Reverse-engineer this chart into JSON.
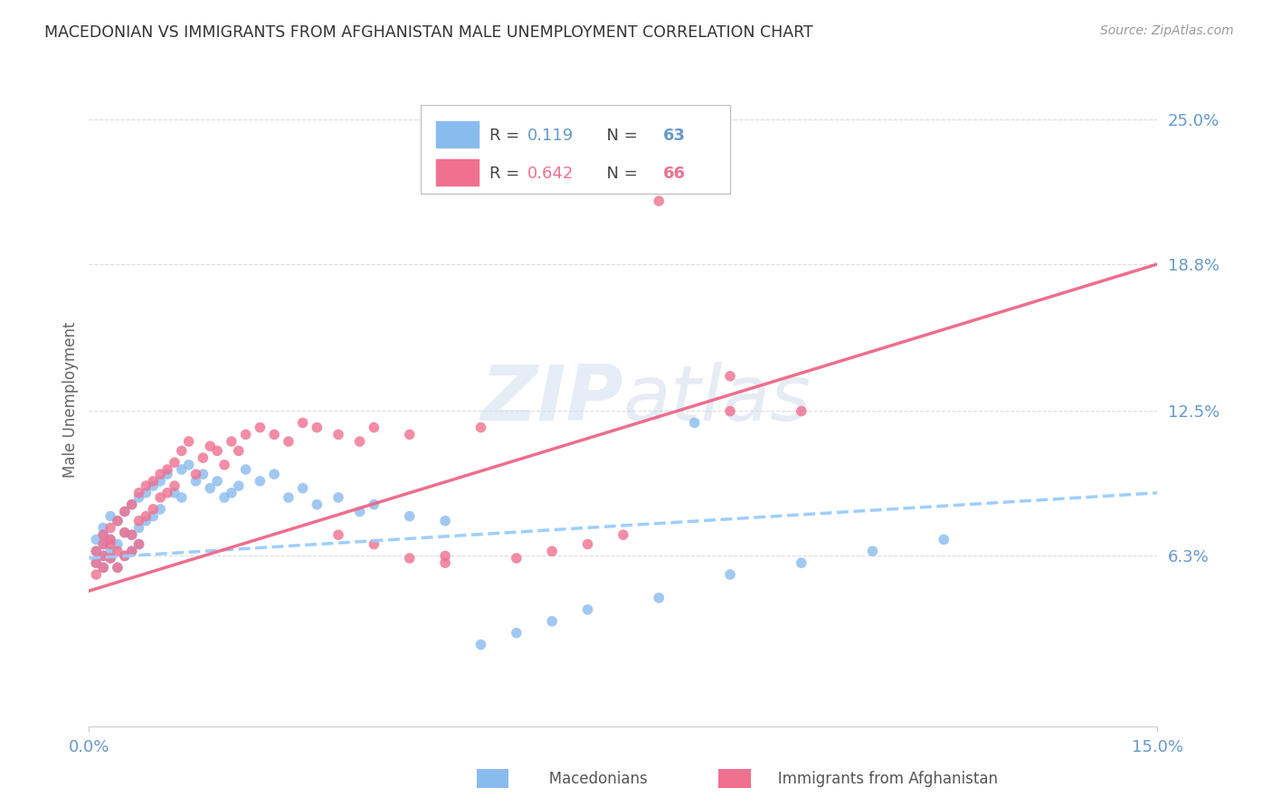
{
  "title": "MACEDONIAN VS IMMIGRANTS FROM AFGHANISTAN MALE UNEMPLOYMENT CORRELATION CHART",
  "source": "Source: ZipAtlas.com",
  "ylabel": "Male Unemployment",
  "xlim": [
    0.0,
    0.15
  ],
  "ylim": [
    -0.01,
    0.27
  ],
  "ytick_values": [
    0.063,
    0.125,
    0.188,
    0.25
  ],
  "ytick_labels": [
    "6.3%",
    "12.5%",
    "18.8%",
    "25.0%"
  ],
  "macedonian_color": "#88bbee",
  "afghanistan_color": "#f07090",
  "trend_mac_color": "#99ccff",
  "trend_afg_color": "#ee6688",
  "tick_color": "#6699cc",
  "R_mac": 0.119,
  "N_mac": 63,
  "R_afg": 0.642,
  "N_afg": 66,
  "mac_trend_x0": 0.0,
  "mac_trend_y0": 0.062,
  "mac_trend_x1": 0.15,
  "mac_trend_y1": 0.09,
  "afg_trend_x0": 0.0,
  "afg_trend_y0": 0.048,
  "afg_trend_x1": 0.15,
  "afg_trend_y1": 0.188,
  "mac_x": [
    0.001,
    0.001,
    0.001,
    0.002,
    0.002,
    0.002,
    0.002,
    0.002,
    0.003,
    0.003,
    0.003,
    0.003,
    0.004,
    0.004,
    0.004,
    0.005,
    0.005,
    0.005,
    0.006,
    0.006,
    0.006,
    0.007,
    0.007,
    0.007,
    0.008,
    0.008,
    0.009,
    0.009,
    0.01,
    0.01,
    0.011,
    0.012,
    0.013,
    0.013,
    0.014,
    0.015,
    0.016,
    0.017,
    0.018,
    0.019,
    0.02,
    0.021,
    0.022,
    0.024,
    0.026,
    0.028,
    0.03,
    0.032,
    0.035,
    0.038,
    0.04,
    0.045,
    0.05,
    0.055,
    0.06,
    0.065,
    0.07,
    0.08,
    0.09,
    0.1,
    0.11,
    0.12,
    0.085
  ],
  "mac_y": [
    0.065,
    0.07,
    0.06,
    0.068,
    0.072,
    0.063,
    0.075,
    0.058,
    0.08,
    0.065,
    0.07,
    0.062,
    0.078,
    0.068,
    0.058,
    0.082,
    0.073,
    0.063,
    0.085,
    0.072,
    0.065,
    0.088,
    0.075,
    0.068,
    0.09,
    0.078,
    0.093,
    0.08,
    0.095,
    0.083,
    0.098,
    0.09,
    0.1,
    0.088,
    0.102,
    0.095,
    0.098,
    0.092,
    0.095,
    0.088,
    0.09,
    0.093,
    0.1,
    0.095,
    0.098,
    0.088,
    0.092,
    0.085,
    0.088,
    0.082,
    0.085,
    0.08,
    0.078,
    0.025,
    0.03,
    0.035,
    0.04,
    0.045,
    0.055,
    0.06,
    0.065,
    0.07,
    0.12
  ],
  "afg_x": [
    0.001,
    0.001,
    0.001,
    0.002,
    0.002,
    0.002,
    0.002,
    0.003,
    0.003,
    0.003,
    0.003,
    0.004,
    0.004,
    0.004,
    0.005,
    0.005,
    0.005,
    0.006,
    0.006,
    0.006,
    0.007,
    0.007,
    0.007,
    0.008,
    0.008,
    0.009,
    0.009,
    0.01,
    0.01,
    0.011,
    0.011,
    0.012,
    0.012,
    0.013,
    0.014,
    0.015,
    0.016,
    0.017,
    0.018,
    0.019,
    0.02,
    0.021,
    0.022,
    0.024,
    0.026,
    0.028,
    0.03,
    0.032,
    0.035,
    0.038,
    0.04,
    0.045,
    0.05,
    0.055,
    0.06,
    0.065,
    0.07,
    0.075,
    0.08,
    0.09,
    0.1,
    0.05,
    0.09,
    0.035,
    0.04,
    0.045
  ],
  "afg_y": [
    0.06,
    0.065,
    0.055,
    0.068,
    0.072,
    0.063,
    0.058,
    0.075,
    0.068,
    0.062,
    0.07,
    0.078,
    0.065,
    0.058,
    0.082,
    0.073,
    0.063,
    0.085,
    0.072,
    0.065,
    0.09,
    0.078,
    0.068,
    0.093,
    0.08,
    0.095,
    0.083,
    0.098,
    0.088,
    0.1,
    0.09,
    0.103,
    0.093,
    0.108,
    0.112,
    0.098,
    0.105,
    0.11,
    0.108,
    0.102,
    0.112,
    0.108,
    0.115,
    0.118,
    0.115,
    0.112,
    0.12,
    0.118,
    0.115,
    0.112,
    0.118,
    0.115,
    0.063,
    0.118,
    0.062,
    0.065,
    0.068,
    0.072,
    0.215,
    0.14,
    0.125,
    0.06,
    0.125,
    0.072,
    0.068,
    0.062
  ]
}
